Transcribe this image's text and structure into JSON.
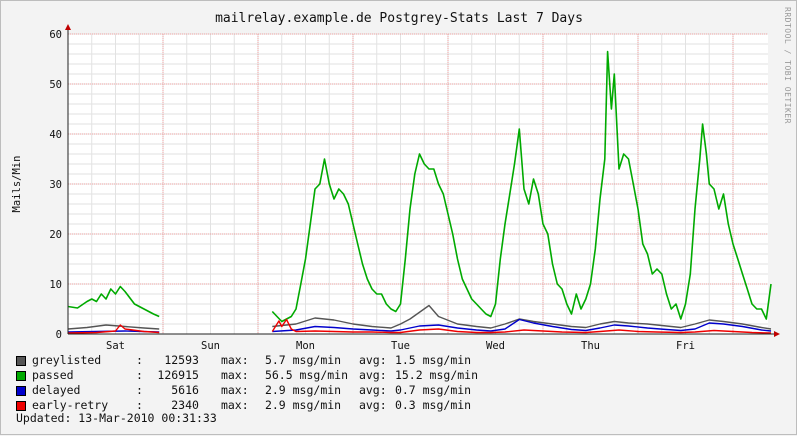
{
  "chart_data": {
    "type": "line",
    "title": "mailrelay.example.de Postgrey-Stats Last 7 Days",
    "ylabel": "Mails/Min",
    "xlabel": "",
    "ylim": [
      0,
      60
    ],
    "yticks": [
      0,
      10,
      20,
      30,
      40,
      50,
      60
    ],
    "xlim": [
      0,
      7
    ],
    "xticks": [
      {
        "label": "Sat",
        "x": 0.5
      },
      {
        "label": "Sun",
        "x": 1.5
      },
      {
        "label": "Mon",
        "x": 2.5
      },
      {
        "label": "Tue",
        "x": 3.5
      },
      {
        "label": "Wed",
        "x": 4.5
      },
      {
        "label": "Thu",
        "x": 5.5
      },
      {
        "label": "Fri",
        "x": 6.5
      }
    ],
    "grid": true,
    "series": [
      {
        "name": "passed",
        "color": "#00aa00",
        "points": [
          [
            0.0,
            5.5
          ],
          [
            0.1,
            5.2
          ],
          [
            0.2,
            6.5
          ],
          [
            0.25,
            7.0
          ],
          [
            0.3,
            6.5
          ],
          [
            0.35,
            8.0
          ],
          [
            0.4,
            7.0
          ],
          [
            0.45,
            9.0
          ],
          [
            0.5,
            8.0
          ],
          [
            0.55,
            9.5
          ],
          [
            0.6,
            8.5
          ],
          [
            0.7,
            6.0
          ],
          [
            0.8,
            5.0
          ],
          [
            0.9,
            4.0
          ],
          [
            0.96,
            3.5
          ],
          [
            1.0,
            null
          ],
          [
            2.15,
            4.5
          ],
          [
            2.2,
            3.5
          ],
          [
            2.25,
            2.5
          ],
          [
            2.35,
            3.5
          ],
          [
            2.4,
            5.0
          ],
          [
            2.45,
            10.0
          ],
          [
            2.5,
            15.0
          ],
          [
            2.55,
            22.0
          ],
          [
            2.6,
            29.0
          ],
          [
            2.65,
            30.0
          ],
          [
            2.7,
            35.0
          ],
          [
            2.75,
            30.0
          ],
          [
            2.8,
            27.0
          ],
          [
            2.85,
            29.0
          ],
          [
            2.9,
            28.0
          ],
          [
            2.95,
            26.0
          ],
          [
            3.0,
            22.0
          ],
          [
            3.05,
            18.0
          ],
          [
            3.1,
            14.0
          ],
          [
            3.15,
            11.0
          ],
          [
            3.2,
            9.0
          ],
          [
            3.25,
            8.0
          ],
          [
            3.3,
            8.0
          ],
          [
            3.35,
            6.0
          ],
          [
            3.4,
            5.0
          ],
          [
            3.45,
            4.5
          ],
          [
            3.5,
            6.0
          ],
          [
            3.55,
            15.0
          ],
          [
            3.6,
            25.0
          ],
          [
            3.65,
            32.0
          ],
          [
            3.7,
            36.0
          ],
          [
            3.75,
            34.0
          ],
          [
            3.8,
            33.0
          ],
          [
            3.85,
            33.0
          ],
          [
            3.9,
            30.0
          ],
          [
            3.95,
            28.0
          ],
          [
            4.0,
            24.0
          ],
          [
            4.05,
            20.0
          ],
          [
            4.1,
            15.0
          ],
          [
            4.15,
            11.0
          ],
          [
            4.2,
            9.0
          ],
          [
            4.25,
            7.0
          ],
          [
            4.3,
            6.0
          ],
          [
            4.35,
            5.0
          ],
          [
            4.4,
            4.0
          ],
          [
            4.45,
            3.5
          ],
          [
            4.5,
            6.0
          ],
          [
            4.55,
            15.0
          ],
          [
            4.6,
            22.0
          ],
          [
            4.65,
            28.0
          ],
          [
            4.7,
            34.0
          ],
          [
            4.75,
            41.0
          ],
          [
            4.8,
            29.0
          ],
          [
            4.85,
            26.0
          ],
          [
            4.9,
            31.0
          ],
          [
            4.95,
            28.0
          ],
          [
            5.0,
            22.0
          ],
          [
            5.05,
            20.0
          ],
          [
            5.1,
            14.0
          ],
          [
            5.15,
            10.0
          ],
          [
            5.2,
            9.0
          ],
          [
            5.25,
            6.0
          ],
          [
            5.3,
            4.0
          ],
          [
            5.35,
            8.0
          ],
          [
            5.4,
            5.0
          ],
          [
            5.45,
            7.0
          ],
          [
            5.5,
            10.0
          ],
          [
            5.55,
            17.0
          ],
          [
            5.6,
            27.0
          ],
          [
            5.65,
            35.0
          ],
          [
            5.68,
            56.5
          ],
          [
            5.72,
            45.0
          ],
          [
            5.75,
            52.0
          ],
          [
            5.8,
            33.0
          ],
          [
            5.85,
            36.0
          ],
          [
            5.9,
            35.0
          ],
          [
            5.95,
            30.0
          ],
          [
            6.0,
            25.0
          ],
          [
            6.05,
            18.0
          ],
          [
            6.1,
            16.0
          ],
          [
            6.15,
            12.0
          ],
          [
            6.2,
            13.0
          ],
          [
            6.25,
            12.0
          ],
          [
            6.3,
            8.0
          ],
          [
            6.35,
            5.0
          ],
          [
            6.4,
            6.0
          ],
          [
            6.45,
            3.0
          ],
          [
            6.5,
            6.0
          ],
          [
            6.55,
            12.0
          ],
          [
            6.6,
            25.0
          ],
          [
            6.65,
            35.0
          ],
          [
            6.68,
            42.0
          ],
          [
            6.72,
            36.0
          ],
          [
            6.75,
            30.0
          ],
          [
            6.8,
            29.0
          ],
          [
            6.85,
            25.0
          ],
          [
            6.9,
            28.0
          ],
          [
            6.95,
            22.0
          ],
          [
            7.0,
            18.0
          ],
          [
            7.05,
            15.0
          ],
          [
            7.1,
            12.0
          ],
          [
            7.15,
            9.0
          ],
          [
            7.2,
            6.0
          ],
          [
            7.25,
            5.0
          ],
          [
            7.3,
            5.0
          ],
          [
            7.35,
            3.0
          ],
          [
            7.4,
            10.0
          ]
        ]
      },
      {
        "name": "greylisted",
        "color": "#555555",
        "points": [
          [
            0.0,
            1.0
          ],
          [
            0.2,
            1.3
          ],
          [
            0.4,
            1.8
          ],
          [
            0.6,
            1.5
          ],
          [
            0.8,
            1.2
          ],
          [
            0.96,
            1.0
          ],
          [
            1.0,
            null
          ],
          [
            2.15,
            1.5
          ],
          [
            2.4,
            2.0
          ],
          [
            2.6,
            3.2
          ],
          [
            2.8,
            2.8
          ],
          [
            3.0,
            2.0
          ],
          [
            3.2,
            1.5
          ],
          [
            3.4,
            1.2
          ],
          [
            3.5,
            2.0
          ],
          [
            3.6,
            3.0
          ],
          [
            3.8,
            5.7
          ],
          [
            3.9,
            3.5
          ],
          [
            4.1,
            2.0
          ],
          [
            4.3,
            1.5
          ],
          [
            4.45,
            1.2
          ],
          [
            4.6,
            2.0
          ],
          [
            4.75,
            3.0
          ],
          [
            4.9,
            2.5
          ],
          [
            5.1,
            2.0
          ],
          [
            5.3,
            1.5
          ],
          [
            5.45,
            1.3
          ],
          [
            5.6,
            2.0
          ],
          [
            5.75,
            2.5
          ],
          [
            5.9,
            2.2
          ],
          [
            6.1,
            2.0
          ],
          [
            6.3,
            1.6
          ],
          [
            6.45,
            1.3
          ],
          [
            6.6,
            2.0
          ],
          [
            6.75,
            2.8
          ],
          [
            6.9,
            2.5
          ],
          [
            7.1,
            2.0
          ],
          [
            7.3,
            1.3
          ],
          [
            7.4,
            1.0
          ]
        ]
      },
      {
        "name": "delayed",
        "color": "#0000cc",
        "points": [
          [
            0.0,
            0.4
          ],
          [
            0.3,
            0.5
          ],
          [
            0.6,
            0.6
          ],
          [
            0.96,
            0.4
          ],
          [
            1.0,
            null
          ],
          [
            2.15,
            0.5
          ],
          [
            2.4,
            0.8
          ],
          [
            2.6,
            1.5
          ],
          [
            2.8,
            1.3
          ],
          [
            3.0,
            1.0
          ],
          [
            3.2,
            0.8
          ],
          [
            3.4,
            0.6
          ],
          [
            3.5,
            0.8
          ],
          [
            3.7,
            1.6
          ],
          [
            3.9,
            1.8
          ],
          [
            4.1,
            1.2
          ],
          [
            4.3,
            0.8
          ],
          [
            4.45,
            0.6
          ],
          [
            4.6,
            1.0
          ],
          [
            4.75,
            2.9
          ],
          [
            4.9,
            2.2
          ],
          [
            5.1,
            1.5
          ],
          [
            5.3,
            0.9
          ],
          [
            5.45,
            0.7
          ],
          [
            5.6,
            1.2
          ],
          [
            5.75,
            1.8
          ],
          [
            5.9,
            1.6
          ],
          [
            6.1,
            1.2
          ],
          [
            6.3,
            0.9
          ],
          [
            6.45,
            0.7
          ],
          [
            6.6,
            1.0
          ],
          [
            6.75,
            2.2
          ],
          [
            6.9,
            2.0
          ],
          [
            7.1,
            1.5
          ],
          [
            7.3,
            0.8
          ],
          [
            7.4,
            0.6
          ]
        ]
      },
      {
        "name": "early-retry",
        "color": "#ee0000",
        "points": [
          [
            0.0,
            0.2
          ],
          [
            0.3,
            0.3
          ],
          [
            0.5,
            0.6
          ],
          [
            0.55,
            1.8
          ],
          [
            0.6,
            1.0
          ],
          [
            0.8,
            0.5
          ],
          [
            0.96,
            0.3
          ],
          [
            1.0,
            null
          ],
          [
            2.15,
            0.5
          ],
          [
            2.22,
            2.6
          ],
          [
            2.25,
            1.5
          ],
          [
            2.3,
            2.9
          ],
          [
            2.35,
            1.0
          ],
          [
            2.4,
            0.5
          ],
          [
            2.6,
            0.6
          ],
          [
            2.8,
            0.5
          ],
          [
            3.0,
            0.4
          ],
          [
            3.2,
            0.4
          ],
          [
            3.4,
            0.3
          ],
          [
            3.5,
            0.3
          ],
          [
            3.7,
            0.8
          ],
          [
            3.9,
            1.0
          ],
          [
            4.1,
            0.5
          ],
          [
            4.3,
            0.3
          ],
          [
            4.45,
            0.3
          ],
          [
            4.6,
            0.4
          ],
          [
            4.8,
            0.8
          ],
          [
            5.0,
            0.6
          ],
          [
            5.2,
            0.4
          ],
          [
            5.45,
            0.3
          ],
          [
            5.6,
            0.5
          ],
          [
            5.8,
            0.8
          ],
          [
            6.0,
            0.5
          ],
          [
            6.2,
            0.4
          ],
          [
            6.45,
            0.3
          ],
          [
            6.6,
            0.4
          ],
          [
            6.8,
            0.7
          ],
          [
            7.0,
            0.5
          ],
          [
            7.2,
            0.3
          ],
          [
            7.4,
            0.2
          ]
        ]
      }
    ]
  },
  "legend": [
    {
      "name": "greylisted",
      "total": "12593",
      "max": "5.7 msg/min",
      "avg": "1.5 msg/min",
      "color": "#555555"
    },
    {
      "name": "passed",
      "total": "126915",
      "max": "56.5 msg/min",
      "avg": "15.2 msg/min",
      "color": "#00aa00"
    },
    {
      "name": "delayed",
      "total": "5616",
      "max": "2.9 msg/min",
      "avg": "0.7 msg/min",
      "color": "#0000cc"
    },
    {
      "name": "early-retry",
      "total": "2340",
      "max": "2.9 msg/min",
      "avg": "0.3 msg/min",
      "color": "#ee0000"
    }
  ],
  "legend_labels": {
    "sep": ":",
    "max": "max:",
    "avg": "avg:"
  },
  "updated": "Updated: 13-Mar-2010 00:31:33",
  "watermark": "RRDTOOL / TOBI OETIKER"
}
